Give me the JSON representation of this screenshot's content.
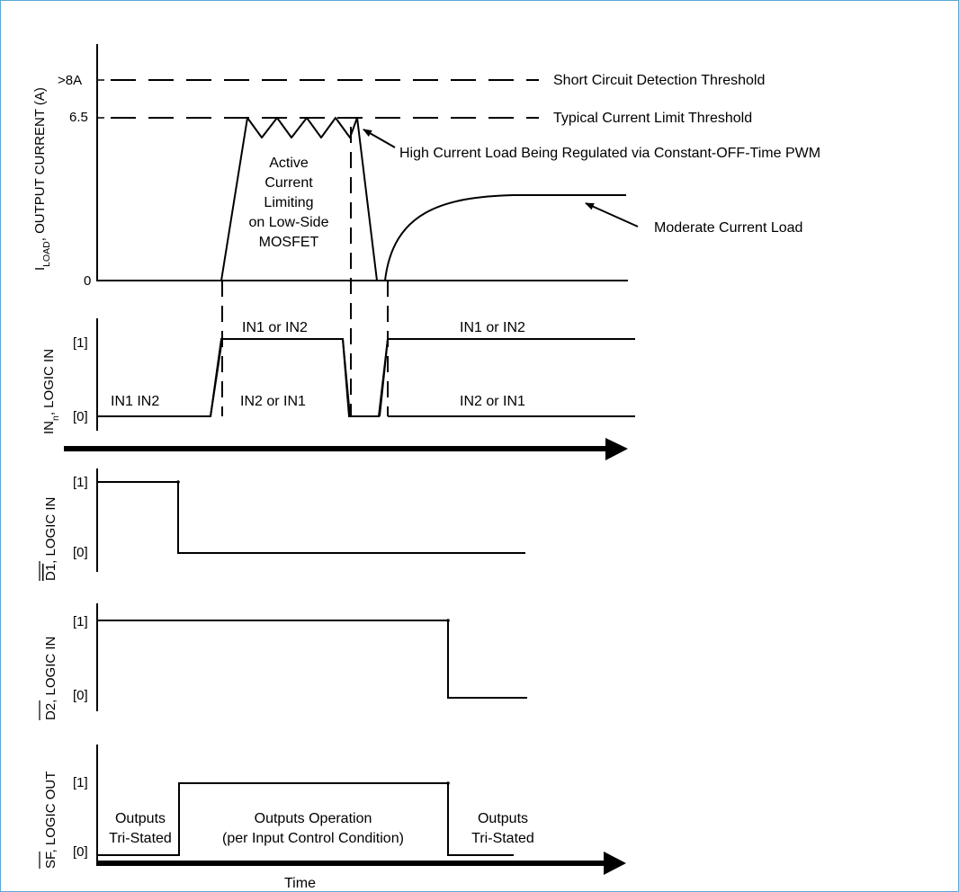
{
  "load_panel": {
    "ylabel_prefix": "I",
    "ylabel_sub": "LOAD",
    "ylabel_suffix": ", OUTPUT CURRENT (A)",
    "tick_short": ">8A",
    "tick_limit": "6.5",
    "tick_zero": "0",
    "short_circuit_label": "Short Circuit Detection Threshold",
    "current_limit_label": "Typical Current Limit Threshold",
    "pwm_label": "High Current Load Being Regulated via Constant-OFF-Time PWM",
    "moderate_label": "Moderate Current Load",
    "active_lines": [
      "Active",
      "Current",
      "Limiting",
      "on Low-Side",
      "MOSFET"
    ]
  },
  "in_panel": {
    "ylabel_prefix": "IN",
    "ylabel_sub": "n",
    "ylabel_suffix": ", LOGIC IN",
    "tick_one": "[1]",
    "tick_zero": "[0]",
    "label_in1in2": "IN1 IN2",
    "label_top_a": "IN1 or IN2",
    "label_bottom_a": "IN2 or IN1",
    "label_top_b": "IN1 or IN2",
    "label_bottom_b": "IN2 or IN1"
  },
  "d1_panel": {
    "ylabel_over": "D1",
    "ylabel_suffix": ", LOGIC IN",
    "tick_one": "[1]",
    "tick_zero": "[0]"
  },
  "d2_panel": {
    "ylabel_over": "D2",
    "ylabel_suffix": ", LOGIC IN",
    "tick_one": "[1]",
    "tick_zero": "[0]"
  },
  "sf_panel": {
    "ylabel_over": "SF",
    "ylabel_suffix": ", LOGIC OUT",
    "tick_one": "[1]",
    "tick_zero": "[0]",
    "left_lines": [
      "Outputs",
      "Tri-Stated"
    ],
    "middle_lines": [
      "Outputs Operation",
      "(per Input Control Condition)"
    ],
    "right_lines": [
      "Outputs",
      "Tri-Stated"
    ]
  },
  "time_label": "Time",
  "colors": {
    "frame": "#5aa9d6",
    "ink": "#000000"
  }
}
